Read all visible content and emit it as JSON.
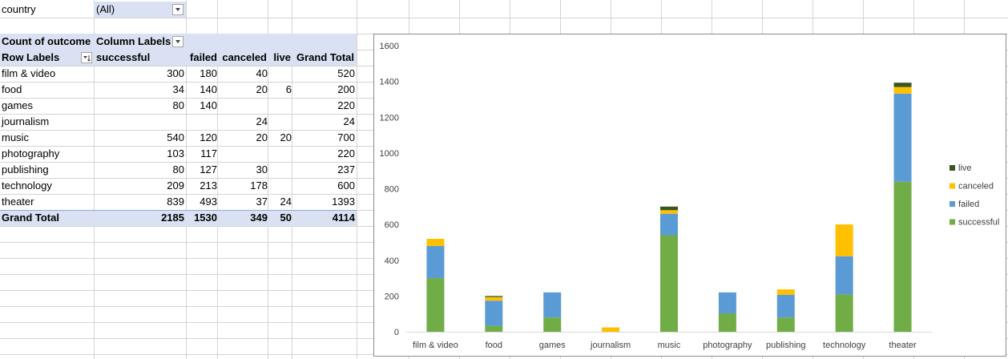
{
  "filter": {
    "label": "country",
    "value": "(All)"
  },
  "pivot": {
    "value_label": "Count of outcome",
    "column_labels": "Column Labels",
    "row_labels": "Row Labels",
    "columns": [
      "successful",
      "failed",
      "canceled",
      "live",
      "Grand Total"
    ],
    "rows": [
      {
        "name": "film & video",
        "cells": [
          "300",
          "180",
          "40",
          "",
          "520"
        ]
      },
      {
        "name": "food",
        "cells": [
          "34",
          "140",
          "20",
          "6",
          "200"
        ]
      },
      {
        "name": "games",
        "cells": [
          "80",
          "140",
          "",
          "",
          "220"
        ]
      },
      {
        "name": "journalism",
        "cells": [
          "",
          "",
          "24",
          "",
          "24"
        ]
      },
      {
        "name": "music",
        "cells": [
          "540",
          "120",
          "20",
          "20",
          "700"
        ]
      },
      {
        "name": "photography",
        "cells": [
          "103",
          "117",
          "",
          "",
          "220"
        ]
      },
      {
        "name": "publishing",
        "cells": [
          "80",
          "127",
          "30",
          "",
          "237"
        ]
      },
      {
        "name": "technology",
        "cells": [
          "209",
          "213",
          "178",
          "",
          "600"
        ]
      },
      {
        "name": "theater",
        "cells": [
          "839",
          "493",
          "37",
          "24",
          "1393"
        ]
      }
    ],
    "total": {
      "name": "Grand Total",
      "cells": [
        "2185",
        "1530",
        "349",
        "50",
        "4114"
      ]
    }
  },
  "chart_data": {
    "type": "bar",
    "stacked": true,
    "categories": [
      "film & video",
      "food",
      "games",
      "journalism",
      "music",
      "photography",
      "publishing",
      "technology",
      "theater"
    ],
    "series": [
      {
        "name": "successful",
        "color": "#70ad47",
        "values": [
          300,
          34,
          80,
          0,
          540,
          103,
          80,
          209,
          839
        ]
      },
      {
        "name": "failed",
        "color": "#5b9bd5",
        "values": [
          180,
          140,
          140,
          0,
          120,
          117,
          127,
          213,
          493
        ]
      },
      {
        "name": "canceled",
        "color": "#ffc000",
        "values": [
          40,
          20,
          0,
          24,
          20,
          0,
          30,
          178,
          37
        ]
      },
      {
        "name": "live",
        "color": "#375623",
        "values": [
          0,
          6,
          0,
          0,
          20,
          0,
          0,
          0,
          24
        ]
      }
    ],
    "yticks": [
      0,
      200,
      400,
      600,
      800,
      1000,
      1200,
      1400,
      1600
    ],
    "ylim": [
      0,
      1600
    ],
    "grid": false,
    "legend_position": "right"
  }
}
